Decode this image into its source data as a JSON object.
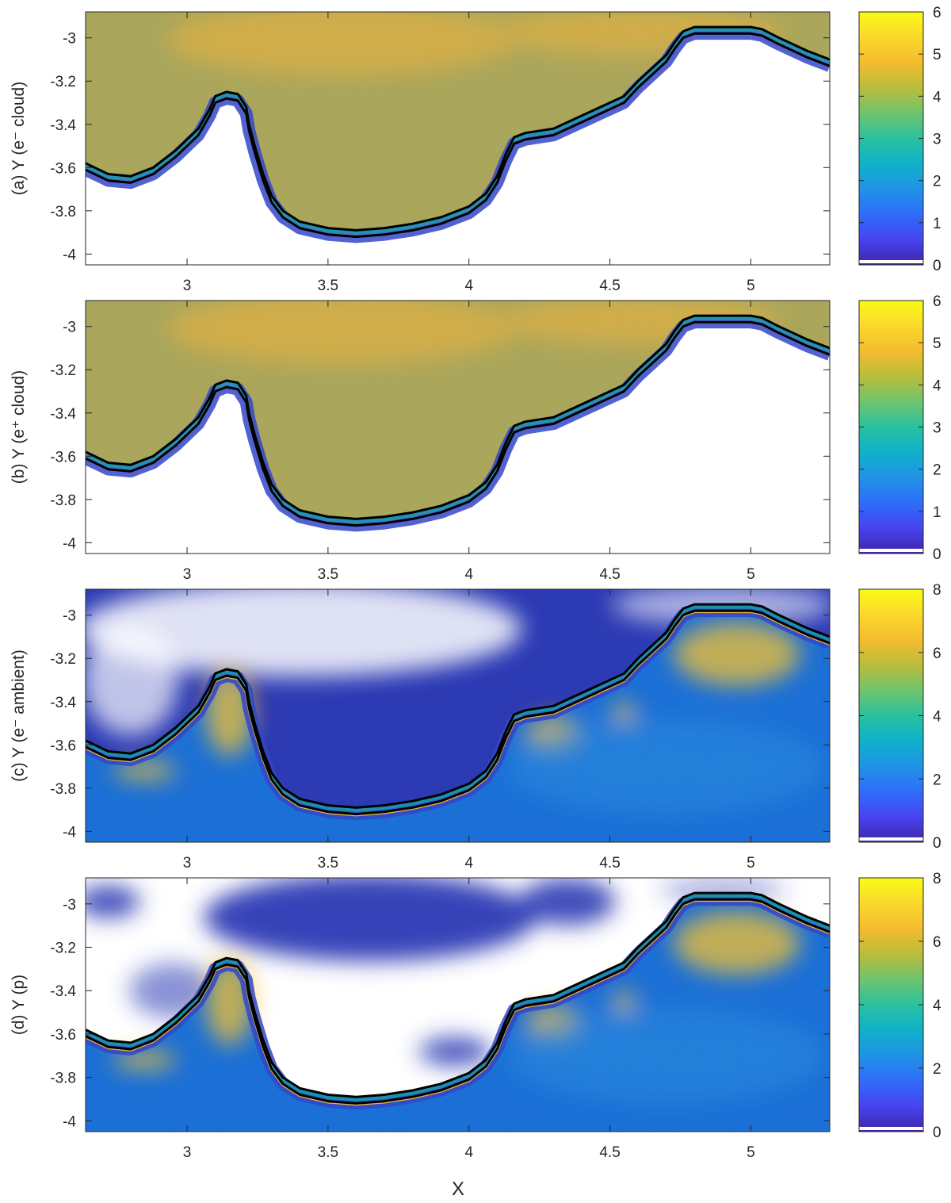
{
  "figure": {
    "xlabel": "X"
  },
  "chart_data": [
    {
      "type": "heatmap",
      "panel": "a",
      "ylabel": "(a) Y (e⁻ cloud)",
      "xlim": [
        2.64,
        5.28
      ],
      "ylim": [
        -4.05,
        -2.88
      ],
      "xticks": [
        3,
        3.5,
        4,
        4.5,
        5
      ],
      "xtick_labels": [
        "3",
        "3.5",
        "4",
        "4.5",
        "5"
      ],
      "yticks": [
        -4,
        -3.8,
        -3.6,
        -3.4,
        -3.2,
        -3
      ],
      "ytick_labels": [
        "-4",
        "-3.8",
        "-3.6",
        "-3.4",
        "-3.2",
        "-3"
      ],
      "colorbar": {
        "min": 0,
        "max": 6,
        "ticks": [
          0,
          1,
          2,
          3,
          4,
          5,
          6
        ],
        "tick_labels": [
          "0",
          "1",
          "2",
          "3",
          "4",
          "5",
          "6"
        ]
      },
      "fill_above_boundary": "cloud",
      "fill_below_boundary": "empty",
      "boundary_offset": 0.03,
      "boundary_x": [
        2.64,
        2.72,
        2.8,
        2.88,
        2.96,
        3.04,
        3.08,
        3.1,
        3.14,
        3.18,
        3.21,
        3.22,
        3.24,
        3.27,
        3.3,
        3.34,
        3.4,
        3.5,
        3.6,
        3.7,
        3.8,
        3.9,
        4.0,
        4.06,
        4.1,
        4.13,
        4.16,
        4.2,
        4.3,
        4.4,
        4.5,
        4.55,
        4.6,
        4.65,
        4.7,
        4.73,
        4.76,
        4.8,
        4.9,
        5.0,
        5.04,
        5.1,
        5.2,
        5.28
      ],
      "boundary_y": [
        -3.58,
        -3.63,
        -3.64,
        -3.6,
        -3.52,
        -3.42,
        -3.33,
        -3.27,
        -3.25,
        -3.26,
        -3.32,
        -3.4,
        -3.5,
        -3.63,
        -3.73,
        -3.8,
        -3.85,
        -3.88,
        -3.89,
        -3.88,
        -3.86,
        -3.83,
        -3.78,
        -3.72,
        -3.64,
        -3.54,
        -3.46,
        -3.44,
        -3.42,
        -3.36,
        -3.3,
        -3.27,
        -3.2,
        -3.14,
        -3.08,
        -3.02,
        -2.97,
        -2.95,
        -2.95,
        -2.95,
        -2.96,
        -3.0,
        -3.06,
        -3.1
      ]
    },
    {
      "type": "heatmap",
      "panel": "b",
      "ylabel": "(b) Y (e⁺ cloud)",
      "xlim": [
        2.64,
        5.28
      ],
      "ylim": [
        -4.05,
        -2.88
      ],
      "xticks": [
        3,
        3.5,
        4,
        4.5,
        5
      ],
      "xtick_labels": [
        "3",
        "3.5",
        "4",
        "4.5",
        "5"
      ],
      "yticks": [
        -4,
        -3.8,
        -3.6,
        -3.4,
        -3.2,
        -3
      ],
      "ytick_labels": [
        "-4",
        "-3.8",
        "-3.6",
        "-3.4",
        "-3.2",
        "-3"
      ],
      "colorbar": {
        "min": 0,
        "max": 6,
        "ticks": [
          0,
          1,
          2,
          3,
          4,
          5,
          6
        ],
        "tick_labels": [
          "0",
          "1",
          "2",
          "3",
          "4",
          "5",
          "6"
        ]
      },
      "fill_above_boundary": "cloud",
      "fill_below_boundary": "empty",
      "boundary_offset": 0.03,
      "boundary_x": [
        2.64,
        2.72,
        2.8,
        2.88,
        2.96,
        3.04,
        3.08,
        3.1,
        3.14,
        3.18,
        3.21,
        3.22,
        3.24,
        3.27,
        3.3,
        3.34,
        3.4,
        3.5,
        3.6,
        3.7,
        3.8,
        3.9,
        4.0,
        4.06,
        4.1,
        4.13,
        4.16,
        4.2,
        4.3,
        4.4,
        4.5,
        4.55,
        4.6,
        4.65,
        4.7,
        4.73,
        4.76,
        4.8,
        4.9,
        5.0,
        5.04,
        5.1,
        5.2,
        5.28
      ],
      "boundary_y": [
        -3.58,
        -3.63,
        -3.64,
        -3.6,
        -3.52,
        -3.42,
        -3.33,
        -3.27,
        -3.25,
        -3.26,
        -3.32,
        -3.4,
        -3.5,
        -3.63,
        -3.73,
        -3.8,
        -3.85,
        -3.88,
        -3.89,
        -3.88,
        -3.86,
        -3.83,
        -3.78,
        -3.72,
        -3.64,
        -3.54,
        -3.46,
        -3.44,
        -3.42,
        -3.36,
        -3.3,
        -3.27,
        -3.2,
        -3.14,
        -3.08,
        -3.02,
        -2.97,
        -2.95,
        -2.95,
        -2.95,
        -2.96,
        -3.0,
        -3.06,
        -3.1
      ]
    },
    {
      "type": "heatmap",
      "panel": "c",
      "ylabel": "(c) Y (e⁻ ambient)",
      "xlim": [
        2.64,
        5.28
      ],
      "ylim": [
        -4.05,
        -2.88
      ],
      "xticks": [
        3,
        3.5,
        4,
        4.5,
        5
      ],
      "xtick_labels": [
        "3",
        "3.5",
        "4",
        "4.5",
        "5"
      ],
      "yticks": [
        -4,
        -3.8,
        -3.6,
        -3.4,
        -3.2,
        -3
      ],
      "ytick_labels": [
        "-4",
        "-3.8",
        "-3.6",
        "-3.4",
        "-3.2",
        "-3"
      ],
      "colorbar": {
        "min": 0,
        "max": 8,
        "ticks": [
          0,
          2,
          4,
          6,
          8
        ],
        "tick_labels": [
          "0",
          "2",
          "4",
          "6",
          "8"
        ]
      },
      "fill_above_boundary": "sparse",
      "fill_below_boundary": "ambient",
      "boundary_offset": 0.03,
      "boundary_x": [
        2.64,
        2.72,
        2.8,
        2.88,
        2.96,
        3.04,
        3.08,
        3.1,
        3.14,
        3.18,
        3.21,
        3.22,
        3.24,
        3.27,
        3.3,
        3.34,
        3.4,
        3.5,
        3.6,
        3.7,
        3.8,
        3.9,
        4.0,
        4.06,
        4.1,
        4.13,
        4.16,
        4.2,
        4.3,
        4.4,
        4.5,
        4.55,
        4.6,
        4.65,
        4.7,
        4.73,
        4.76,
        4.8,
        4.9,
        5.0,
        5.04,
        5.1,
        5.2,
        5.28
      ],
      "boundary_y": [
        -3.58,
        -3.63,
        -3.64,
        -3.6,
        -3.52,
        -3.42,
        -3.33,
        -3.27,
        -3.25,
        -3.26,
        -3.32,
        -3.4,
        -3.5,
        -3.63,
        -3.73,
        -3.8,
        -3.85,
        -3.88,
        -3.89,
        -3.88,
        -3.86,
        -3.83,
        -3.78,
        -3.72,
        -3.64,
        -3.54,
        -3.46,
        -3.44,
        -3.42,
        -3.36,
        -3.3,
        -3.27,
        -3.2,
        -3.14,
        -3.08,
        -3.02,
        -2.97,
        -2.95,
        -2.95,
        -2.95,
        -2.96,
        -3.0,
        -3.06,
        -3.1
      ]
    },
    {
      "type": "heatmap",
      "panel": "d",
      "ylabel": "(d) Y (p)",
      "xlim": [
        2.64,
        5.28
      ],
      "ylim": [
        -4.05,
        -2.88
      ],
      "xticks": [
        3,
        3.5,
        4,
        4.5,
        5
      ],
      "xtick_labels": [
        "3",
        "3.5",
        "4",
        "4.5",
        "5"
      ],
      "yticks": [
        -4,
        -3.8,
        -3.6,
        -3.4,
        -3.2,
        -3
      ],
      "ytick_labels": [
        "-4",
        "-3.8",
        "-3.6",
        "-3.4",
        "-3.2",
        "-3"
      ],
      "colorbar": {
        "min": 0,
        "max": 8,
        "ticks": [
          0,
          2,
          4,
          6,
          8
        ],
        "tick_labels": [
          "0",
          "2",
          "4",
          "6",
          "8"
        ]
      },
      "fill_above_boundary": "patchy",
      "fill_below_boundary": "ambient",
      "boundary_offset": 0.03,
      "boundary_x": [
        2.64,
        2.72,
        2.8,
        2.88,
        2.96,
        3.04,
        3.08,
        3.1,
        3.14,
        3.18,
        3.21,
        3.22,
        3.24,
        3.27,
        3.3,
        3.34,
        3.4,
        3.5,
        3.6,
        3.7,
        3.8,
        3.9,
        4.0,
        4.06,
        4.1,
        4.13,
        4.16,
        4.2,
        4.3,
        4.4,
        4.5,
        4.55,
        4.6,
        4.65,
        4.7,
        4.73,
        4.76,
        4.8,
        4.9,
        5.0,
        5.04,
        5.1,
        5.2,
        5.28
      ],
      "boundary_y": [
        -3.58,
        -3.63,
        -3.64,
        -3.6,
        -3.52,
        -3.42,
        -3.33,
        -3.27,
        -3.25,
        -3.26,
        -3.32,
        -3.4,
        -3.5,
        -3.63,
        -3.73,
        -3.8,
        -3.85,
        -3.88,
        -3.89,
        -3.88,
        -3.86,
        -3.83,
        -3.78,
        -3.72,
        -3.64,
        -3.54,
        -3.46,
        -3.44,
        -3.42,
        -3.36,
        -3.3,
        -3.27,
        -3.2,
        -3.14,
        -3.08,
        -3.02,
        -2.97,
        -2.95,
        -2.95,
        -2.95,
        -2.96,
        -3.0,
        -3.06,
        -3.1
      ]
    }
  ],
  "colors": {
    "cloud": "#a9a55a",
    "cloud_bright": "#f0b43a",
    "ambient": "#1a6fd6",
    "ambient_bright": "#f7c22e",
    "sparse": "#2c3ab4",
    "boundary": "#000000",
    "blue_edge": "#3447c8",
    "teal_edge": "#16a0a8",
    "axis": "#262626"
  },
  "colormap": [
    "#3e26a8",
    "#4743f0",
    "#2f6df9",
    "#1f93e6",
    "#10b1c9",
    "#2ac1a0",
    "#6fc46d",
    "#b9bd3b",
    "#f4bc2f",
    "#fad82c",
    "#f9fb15"
  ]
}
